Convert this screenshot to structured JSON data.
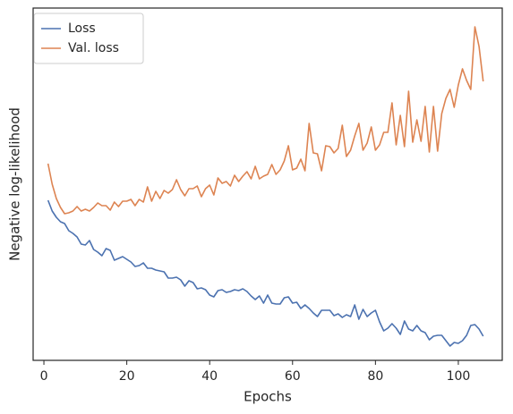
{
  "chart_data": {
    "type": "line",
    "xlabel": "Epochs",
    "ylabel": "Negative log-likelihood",
    "x": [
      1,
      2,
      3,
      4,
      5,
      6,
      7,
      8,
      9,
      10,
      11,
      12,
      13,
      14,
      15,
      16,
      17,
      18,
      19,
      20,
      21,
      22,
      23,
      24,
      25,
      26,
      27,
      28,
      29,
      30,
      31,
      32,
      33,
      34,
      35,
      36,
      37,
      38,
      39,
      40,
      41,
      42,
      43,
      44,
      45,
      46,
      47,
      48,
      49,
      50,
      51,
      52,
      53,
      54,
      55,
      56,
      57,
      58,
      59,
      60,
      61,
      62,
      63,
      64,
      65,
      66,
      67,
      68,
      69,
      70,
      71,
      72,
      73,
      74,
      75,
      76,
      77,
      78,
      79,
      80,
      81,
      82,
      83,
      84,
      85,
      86,
      87,
      88,
      89,
      90,
      91,
      92,
      93,
      94,
      95,
      96,
      97,
      98,
      99,
      100,
      101,
      102,
      103,
      104,
      105,
      106
    ],
    "series": [
      {
        "name": "Loss",
        "color": "#4c72b0",
        "values": [
          179,
          167,
          160,
          155,
          153,
          145,
          142,
          138,
          130,
          129,
          134,
          124,
          121,
          117,
          125,
          123,
          112,
          114,
          116,
          113,
          110,
          105,
          106,
          109,
          103,
          103,
          101,
          100,
          99,
          92,
          92,
          93,
          90,
          83,
          89,
          87,
          80,
          81,
          79,
          73,
          71,
          78,
          79,
          76,
          77,
          79,
          78,
          80,
          77,
          72,
          68,
          72,
          64,
          73,
          64,
          63,
          63,
          70,
          71,
          64,
          65,
          58,
          62,
          58,
          53,
          49,
          56,
          56,
          56,
          50,
          52,
          48,
          51,
          49,
          62,
          46,
          57,
          49,
          53,
          56,
          43,
          33,
          36,
          41,
          36,
          29,
          44,
          35,
          33,
          39,
          33,
          31,
          23,
          27,
          28,
          28,
          22,
          16,
          20,
          19,
          22,
          28,
          39,
          40,
          35,
          27
        ]
      },
      {
        "name": "Val. loss",
        "color": "#dd8452",
        "values": [
          220,
          197,
          181,
          171,
          164,
          165,
          167,
          172,
          167,
          169,
          167,
          171,
          176,
          173,
          173,
          168,
          177,
          172,
          178,
          178,
          180,
          173,
          180,
          177,
          194,
          178,
          189,
          181,
          190,
          187,
          191,
          202,
          191,
          184,
          192,
          192,
          195,
          183,
          192,
          196,
          185,
          204,
          198,
          200,
          195,
          207,
          200,
          206,
          211,
          203,
          217,
          203,
          206,
          208,
          219,
          208,
          213,
          223,
          240,
          213,
          215,
          225,
          212,
          265,
          232,
          231,
          212,
          240,
          239,
          232,
          237,
          263,
          228,
          235,
          251,
          265,
          235,
          243,
          261,
          235,
          241,
          255,
          255,
          288,
          241,
          274,
          239,
          301,
          244,
          269,
          245,
          284,
          233,
          284,
          234,
          276,
          293,
          303,
          283,
          308,
          326,
          313,
          303,
          373,
          351,
          312
        ]
      }
    ],
    "xlim": [
      -2.6,
      110.6
    ],
    "xticks": [
      0,
      20,
      40,
      60,
      80,
      100
    ],
    "ylim": [
      0,
      394
    ],
    "legend": "upper left"
  }
}
